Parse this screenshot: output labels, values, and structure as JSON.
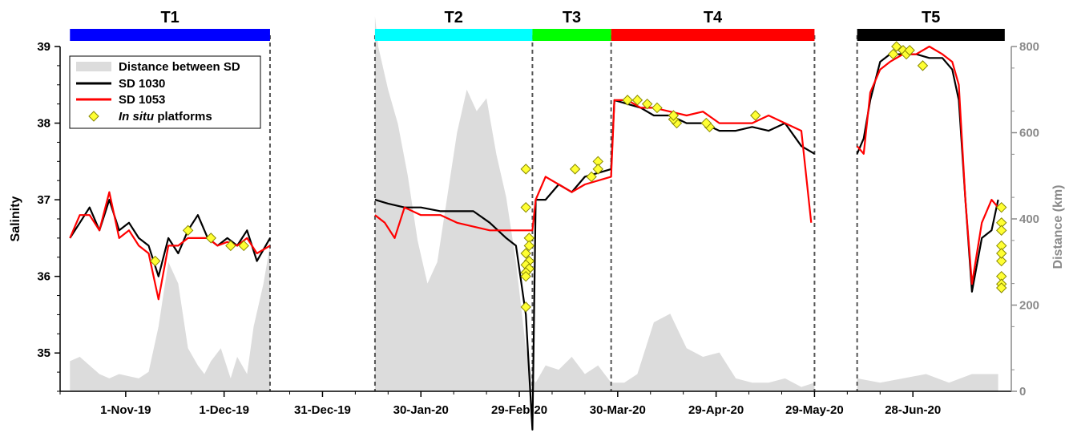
{
  "chart_data": {
    "type": "line",
    "title": "",
    "xlabel": "",
    "ylabel": "Salinity",
    "y2label": "Distance (km)",
    "ylim": [
      34.5,
      39
    ],
    "y2lim": [
      0,
      800
    ],
    "xlim": [
      "2019-10-12",
      "2020-07-28"
    ],
    "yticks": [
      {
        "value": 35,
        "label": "35"
      },
      {
        "value": 36,
        "label": "36"
      },
      {
        "value": 37,
        "label": "37"
      },
      {
        "value": 38,
        "label": "38"
      },
      {
        "value": 39,
        "label": "39"
      }
    ],
    "y2ticks": [
      {
        "value": 0,
        "label": "0"
      },
      {
        "value": 200,
        "label": "200"
      },
      {
        "value": 400,
        "label": "400"
      },
      {
        "value": 600,
        "label": "600"
      },
      {
        "value": 800,
        "label": "800"
      }
    ],
    "xticks": [
      {
        "date": "2019-11-01",
        "label": "1-Nov-19"
      },
      {
        "date": "2019-12-01",
        "label": "1-Dec-19"
      },
      {
        "date": "2019-12-31",
        "label": "31-Dec-19"
      },
      {
        "date": "2020-01-30",
        "label": "30-Jan-20"
      },
      {
        "date": "2020-02-29",
        "label": "29-Feb-20"
      },
      {
        "date": "2020-03-30",
        "label": "30-Mar-20"
      },
      {
        "date": "2020-04-29",
        "label": "29-Apr-20"
      },
      {
        "date": "2020-05-29",
        "label": "29-May-20"
      },
      {
        "date": "2020-06-28",
        "label": "28-Jun-20"
      }
    ],
    "periods": [
      {
        "name": "T1",
        "start": "2019-10-15",
        "end": "2019-12-15",
        "color": "#0000ff"
      },
      {
        "name": "T2",
        "start": "2020-01-16",
        "end": "2020-03-04",
        "color": "#00ffff"
      },
      {
        "name": "T3",
        "start": "2020-03-04",
        "end": "2020-03-28",
        "color": "#00ff00"
      },
      {
        "name": "T4",
        "start": "2020-03-28",
        "end": "2020-05-29",
        "color": "#ff0000"
      },
      {
        "name": "T5",
        "start": "2020-06-11",
        "end": "2020-07-26",
        "color": "#000000"
      }
    ],
    "period_boundaries": [
      "2019-12-15",
      "2020-01-16",
      "2020-03-04",
      "2020-03-28",
      "2020-05-29",
      "2020-06-11"
    ],
    "legend": {
      "position": "top-left",
      "entries": [
        {
          "label": "Distance between SD",
          "kind": "area",
          "color": "#dcdcdc"
        },
        {
          "label": "SD 1030",
          "kind": "line",
          "color": "#000000"
        },
        {
          "label": "SD 1053",
          "kind": "line",
          "color": "#ff0000"
        },
        {
          "label_italic": "In situ",
          "label_rest": " platforms",
          "kind": "marker",
          "color": "#ffff33"
        }
      ]
    },
    "series": [
      {
        "name": "Distance between SD",
        "type": "area",
        "axis": "right",
        "color": "#dcdcdc",
        "x": [
          "2019-10-15",
          "2019-10-18",
          "2019-10-21",
          "2019-10-24",
          "2019-10-27",
          "2019-10-30",
          "2019-11-02",
          "2019-11-05",
          "2019-11-08",
          "2019-11-11",
          "2019-11-14",
          "2019-11-17",
          "2019-11-20",
          "2019-11-23",
          "2019-11-25",
          "2019-11-27",
          "2019-11-30",
          "2019-12-03",
          "2019-12-05",
          "2019-12-08",
          "2019-12-10",
          "2019-12-13",
          "2019-12-15",
          "2020-01-16",
          "2020-01-17",
          "2020-01-20",
          "2020-01-23",
          "2020-01-26",
          "2020-01-29",
          "2020-02-01",
          "2020-02-04",
          "2020-02-07",
          "2020-02-10",
          "2020-02-13",
          "2020-02-16",
          "2020-02-19",
          "2020-02-22",
          "2020-02-25",
          "2020-02-28",
          "2020-03-02",
          "2020-03-04",
          "2020-03-05",
          "2020-03-08",
          "2020-03-12",
          "2020-03-16",
          "2020-03-20",
          "2020-03-24",
          "2020-03-28",
          "2020-04-01",
          "2020-04-05",
          "2020-04-10",
          "2020-04-15",
          "2020-04-20",
          "2020-04-25",
          "2020-04-30",
          "2020-05-05",
          "2020-05-10",
          "2020-05-15",
          "2020-05-20",
          "2020-05-25",
          "2020-05-29",
          "2020-06-11",
          "2020-06-18",
          "2020-06-25",
          "2020-07-02",
          "2020-07-09",
          "2020-07-16",
          "2020-07-24"
        ],
        "values": [
          70,
          80,
          60,
          40,
          30,
          40,
          35,
          30,
          45,
          150,
          300,
          250,
          100,
          60,
          40,
          70,
          100,
          30,
          80,
          40,
          150,
          250,
          340,
          870,
          800,
          700,
          620,
          500,
          350,
          250,
          300,
          450,
          600,
          700,
          650,
          680,
          550,
          450,
          300,
          100,
          30,
          20,
          60,
          50,
          80,
          40,
          60,
          20,
          20,
          40,
          160,
          180,
          100,
          80,
          90,
          30,
          20,
          20,
          30,
          10,
          20,
          30,
          20,
          30,
          40,
          20,
          40,
          40
        ]
      },
      {
        "name": "SD 1030",
        "type": "line",
        "axis": "left",
        "color": "#000000",
        "x": [
          "2019-10-15",
          "2019-10-18",
          "2019-10-21",
          "2019-10-24",
          "2019-10-27",
          "2019-10-30",
          "2019-11-02",
          "2019-11-05",
          "2019-11-08",
          "2019-11-11",
          "2019-11-14",
          "2019-11-17",
          "2019-11-20",
          "2019-11-23",
          "2019-11-26",
          "2019-11-29",
          "2019-12-02",
          "2019-12-05",
          "2019-12-08",
          "2019-12-11",
          "2019-12-15",
          "2020-01-16",
          "2020-01-20",
          "2020-01-25",
          "2020-01-30",
          "2020-02-05",
          "2020-02-10",
          "2020-02-15",
          "2020-02-20",
          "2020-02-25",
          "2020-02-28",
          "2020-03-02",
          "2020-03-04",
          "2020-03-05",
          "2020-03-08",
          "2020-03-12",
          "2020-03-16",
          "2020-03-20",
          "2020-03-24",
          "2020-03-28",
          "2020-03-29",
          "2020-04-02",
          "2020-04-06",
          "2020-04-10",
          "2020-04-15",
          "2020-04-20",
          "2020-04-25",
          "2020-04-30",
          "2020-05-05",
          "2020-05-10",
          "2020-05-15",
          "2020-05-20",
          "2020-05-25",
          "2020-05-29",
          "2020-06-11",
          "2020-06-13",
          "2020-06-15",
          "2020-06-18",
          "2020-06-21",
          "2020-06-25",
          "2020-06-29",
          "2020-07-03",
          "2020-07-07",
          "2020-07-10",
          "2020-07-12",
          "2020-07-14",
          "2020-07-16",
          "2020-07-19",
          "2020-07-22",
          "2020-07-24"
        ],
        "values": [
          36.5,
          36.7,
          36.9,
          36.6,
          37.0,
          36.6,
          36.7,
          36.5,
          36.4,
          36.0,
          36.5,
          36.3,
          36.6,
          36.8,
          36.5,
          36.4,
          36.5,
          36.4,
          36.6,
          36.2,
          36.5,
          37.0,
          36.95,
          36.9,
          36.9,
          36.85,
          36.85,
          36.85,
          36.7,
          36.5,
          36.4,
          35.5,
          34.0,
          37.0,
          37.0,
          37.2,
          37.1,
          37.3,
          37.35,
          37.4,
          38.3,
          38.25,
          38.2,
          38.1,
          38.1,
          38.0,
          38.0,
          37.9,
          37.9,
          37.95,
          37.9,
          38.0,
          37.7,
          37.6,
          37.6,
          37.8,
          38.3,
          38.8,
          38.9,
          38.9,
          38.9,
          38.85,
          38.85,
          38.7,
          38.3,
          37.0,
          35.8,
          36.5,
          36.6,
          37.0
        ]
      },
      {
        "name": "SD 1053",
        "type": "line",
        "axis": "left",
        "color": "#ff0000",
        "x": [
          "2019-10-15",
          "2019-10-18",
          "2019-10-21",
          "2019-10-24",
          "2019-10-27",
          "2019-10-30",
          "2019-11-02",
          "2019-11-05",
          "2019-11-08",
          "2019-11-11",
          "2019-11-14",
          "2019-11-17",
          "2019-11-20",
          "2019-11-23",
          "2019-11-26",
          "2019-11-29",
          "2019-12-02",
          "2019-12-05",
          "2019-12-08",
          "2019-12-11",
          "2019-12-15",
          "2020-01-16",
          "2020-01-19",
          "2020-01-22",
          "2020-01-25",
          "2020-01-30",
          "2020-02-05",
          "2020-02-10",
          "2020-02-15",
          "2020-02-20",
          "2020-02-25",
          "2020-03-01",
          "2020-03-04",
          "2020-03-05",
          "2020-03-08",
          "2020-03-12",
          "2020-03-16",
          "2020-03-20",
          "2020-03-24",
          "2020-03-28",
          "2020-03-29",
          "2020-04-02",
          "2020-04-06",
          "2020-04-10",
          "2020-04-15",
          "2020-04-20",
          "2020-04-25",
          "2020-04-30",
          "2020-05-05",
          "2020-05-10",
          "2020-05-15",
          "2020-05-20",
          "2020-05-25",
          "2020-05-28",
          "2020-06-11",
          "2020-06-13",
          "2020-06-15",
          "2020-06-18",
          "2020-06-21",
          "2020-06-25",
          "2020-06-29",
          "2020-07-03",
          "2020-07-07",
          "2020-07-10",
          "2020-07-12",
          "2020-07-14",
          "2020-07-16",
          "2020-07-19",
          "2020-07-22",
          "2020-07-24"
        ],
        "values": [
          36.5,
          36.8,
          36.8,
          36.6,
          37.1,
          36.5,
          36.6,
          36.4,
          36.3,
          35.7,
          36.4,
          36.4,
          36.5,
          36.5,
          36.5,
          36.4,
          36.45,
          36.4,
          36.5,
          36.3,
          36.4,
          36.8,
          36.7,
          36.5,
          36.9,
          36.8,
          36.8,
          36.7,
          36.65,
          36.6,
          36.6,
          36.6,
          36.6,
          37.0,
          37.3,
          37.2,
          37.1,
          37.2,
          37.25,
          37.3,
          38.3,
          38.3,
          38.2,
          38.2,
          38.15,
          38.1,
          38.15,
          38.0,
          38.0,
          38.0,
          38.1,
          38.0,
          37.9,
          36.7,
          37.7,
          37.6,
          38.4,
          38.7,
          38.8,
          38.9,
          38.9,
          39.0,
          38.9,
          38.8,
          38.5,
          37.0,
          35.9,
          36.7,
          37.0,
          36.9
        ]
      },
      {
        "name": "In situ platforms",
        "type": "scatter",
        "axis": "left",
        "color": "#ffff33",
        "x": [
          "2019-11-10",
          "2019-11-20",
          "2019-11-27",
          "2019-12-03",
          "2019-12-07",
          "2020-03-02",
          "2020-03-02",
          "2020-03-03",
          "2020-03-03",
          "2020-03-02",
          "2020-03-03",
          "2020-03-02",
          "2020-03-03",
          "2020-03-02",
          "2020-03-02",
          "2020-03-02",
          "2020-03-24",
          "2020-03-24",
          "2020-03-17",
          "2020-03-22",
          "2020-04-02",
          "2020-04-05",
          "2020-04-08",
          "2020-04-11",
          "2020-04-17",
          "2020-04-16",
          "2020-04-16",
          "2020-04-27",
          "2020-04-26",
          "2020-05-11",
          "2020-06-22",
          "2020-06-23",
          "2020-06-25",
          "2020-06-26",
          "2020-06-27",
          "2020-07-01",
          "2020-07-25",
          "2020-07-25",
          "2020-07-25",
          "2020-07-25",
          "2020-07-25",
          "2020-07-25",
          "2020-07-25",
          "2020-07-25",
          "2020-07-25"
        ],
        "values": [
          36.2,
          36.6,
          36.5,
          36.4,
          36.4,
          37.4,
          36.9,
          36.5,
          36.4,
          36.3,
          36.2,
          36.15,
          36.1,
          36.05,
          36.0,
          35.6,
          37.5,
          37.4,
          37.4,
          37.3,
          38.3,
          38.3,
          38.25,
          38.2,
          38.0,
          38.05,
          38.1,
          37.95,
          38.0,
          38.1,
          38.9,
          39.0,
          38.95,
          38.9,
          38.95,
          38.75,
          36.9,
          36.7,
          36.6,
          36.4,
          36.2,
          36.0,
          35.9,
          35.85,
          36.3
        ]
      }
    ]
  }
}
